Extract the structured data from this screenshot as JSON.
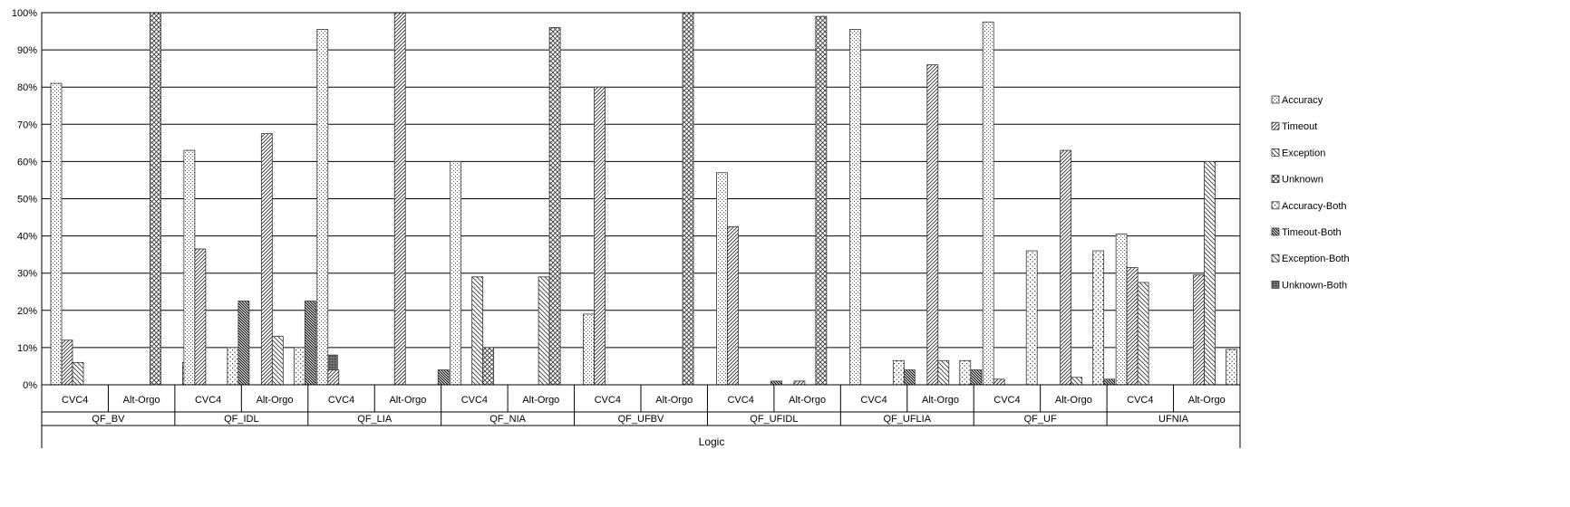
{
  "chart_data": {
    "type": "bar",
    "xlabel": "Logic",
    "ylabel": "",
    "ylim": [
      0,
      100
    ],
    "y_ticks": [
      "0%",
      "10%",
      "20%",
      "30%",
      "40%",
      "50%",
      "60%",
      "70%",
      "80%",
      "90%",
      "100%"
    ],
    "grid": "horizontal",
    "legend_position": "right",
    "groups": [
      "QF_BV",
      "QF_IDL",
      "QF_LIA",
      "QF_NIA",
      "QF_UFBV",
      "QF_UFIDL",
      "QF_UFLIA",
      "QF_UF",
      "UFNIA"
    ],
    "solvers": [
      "CVC4",
      "Alt-Orgo"
    ],
    "series": [
      {
        "name": "Accuracy",
        "pattern": "dots",
        "values": [
          [
            81,
            0
          ],
          [
            63,
            0
          ],
          [
            95.5,
            0
          ],
          [
            60,
            0
          ],
          [
            19,
            0
          ],
          [
            57,
            0
          ],
          [
            95.5,
            0
          ],
          [
            97.5,
            0
          ],
          [
            40.5,
            0
          ]
        ]
      },
      {
        "name": "Timeout",
        "pattern": "diag",
        "values": [
          [
            12,
            0
          ],
          [
            36.5,
            67.5
          ],
          [
            4,
            100
          ],
          [
            0,
            0
          ],
          [
            80,
            0
          ],
          [
            42.5,
            1
          ],
          [
            0,
            86
          ],
          [
            1.5,
            63
          ],
          [
            31.5,
            29.5
          ]
        ]
      },
      {
        "name": "Exception",
        "pattern": "diag-rev",
        "values": [
          [
            6,
            0
          ],
          [
            0,
            13
          ],
          [
            0,
            0
          ],
          [
            29,
            29
          ],
          [
            0,
            0
          ],
          [
            0,
            0
          ],
          [
            0,
            6.5
          ],
          [
            0,
            2
          ],
          [
            27.5,
            60
          ]
        ]
      },
      {
        "name": "Unknown",
        "pattern": "cross",
        "values": [
          [
            0,
            100
          ],
          [
            0,
            0
          ],
          [
            0,
            0
          ],
          [
            10,
            96
          ],
          [
            0,
            100
          ],
          [
            0,
            99
          ],
          [
            0,
            0
          ],
          [
            0,
            0
          ],
          [
            0,
            0
          ]
        ]
      },
      {
        "name": "Accuracy-Both",
        "pattern": "dots-wide",
        "values": [
          [
            0,
            0
          ],
          [
            10,
            10
          ],
          [
            0,
            0
          ],
          [
            0,
            0
          ],
          [
            0,
            0
          ],
          [
            0,
            0
          ],
          [
            6.5,
            6.5
          ],
          [
            36,
            36
          ],
          [
            0,
            9.5
          ]
        ]
      },
      {
        "name": "Timeout-Both",
        "pattern": "diag-dense",
        "values": [
          [
            0,
            0
          ],
          [
            22.5,
            22.5
          ],
          [
            0,
            4
          ],
          [
            0,
            0
          ],
          [
            0,
            0
          ],
          [
            1,
            0
          ],
          [
            4,
            4
          ],
          [
            0,
            1.5
          ],
          [
            0,
            0
          ]
        ]
      },
      {
        "name": "Exception-Both",
        "pattern": "diag-rev-wide",
        "values": [
          [
            0,
            6
          ],
          [
            0,
            0
          ],
          [
            0,
            0
          ],
          [
            0,
            0
          ],
          [
            0,
            0
          ],
          [
            0,
            0
          ],
          [
            0,
            0
          ],
          [
            0,
            0
          ],
          [
            0,
            0
          ]
        ]
      },
      {
        "name": "Unknown-Both",
        "pattern": "grid-dark",
        "values": [
          [
            0,
            0
          ],
          [
            0,
            8
          ],
          [
            0,
            0
          ],
          [
            0,
            3
          ],
          [
            0,
            0
          ],
          [
            0,
            0
          ],
          [
            0,
            0
          ],
          [
            0,
            0.5
          ],
          [
            0,
            0
          ]
        ]
      }
    ]
  }
}
